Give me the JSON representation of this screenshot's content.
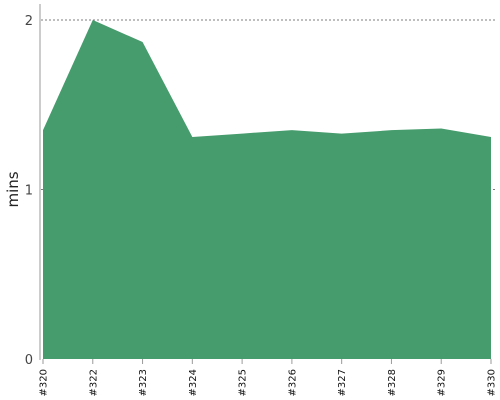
{
  "chart_data": {
    "type": "area",
    "title": "",
    "xlabel": "",
    "ylabel": "mins",
    "x": [
      "#320",
      "#322",
      "#323",
      "#324",
      "#325",
      "#326",
      "#327",
      "#328",
      "#329",
      "#330"
    ],
    "y": [
      1.35,
      2.0,
      1.87,
      1.31,
      1.33,
      1.35,
      1.33,
      1.35,
      1.36,
      1.31
    ],
    "ylim": [
      0,
      2.0
    ],
    "yticks": [
      0,
      1,
      2
    ],
    "grid": "horizontal-dashed",
    "legend": "none",
    "fill_color": "#469c6d"
  }
}
